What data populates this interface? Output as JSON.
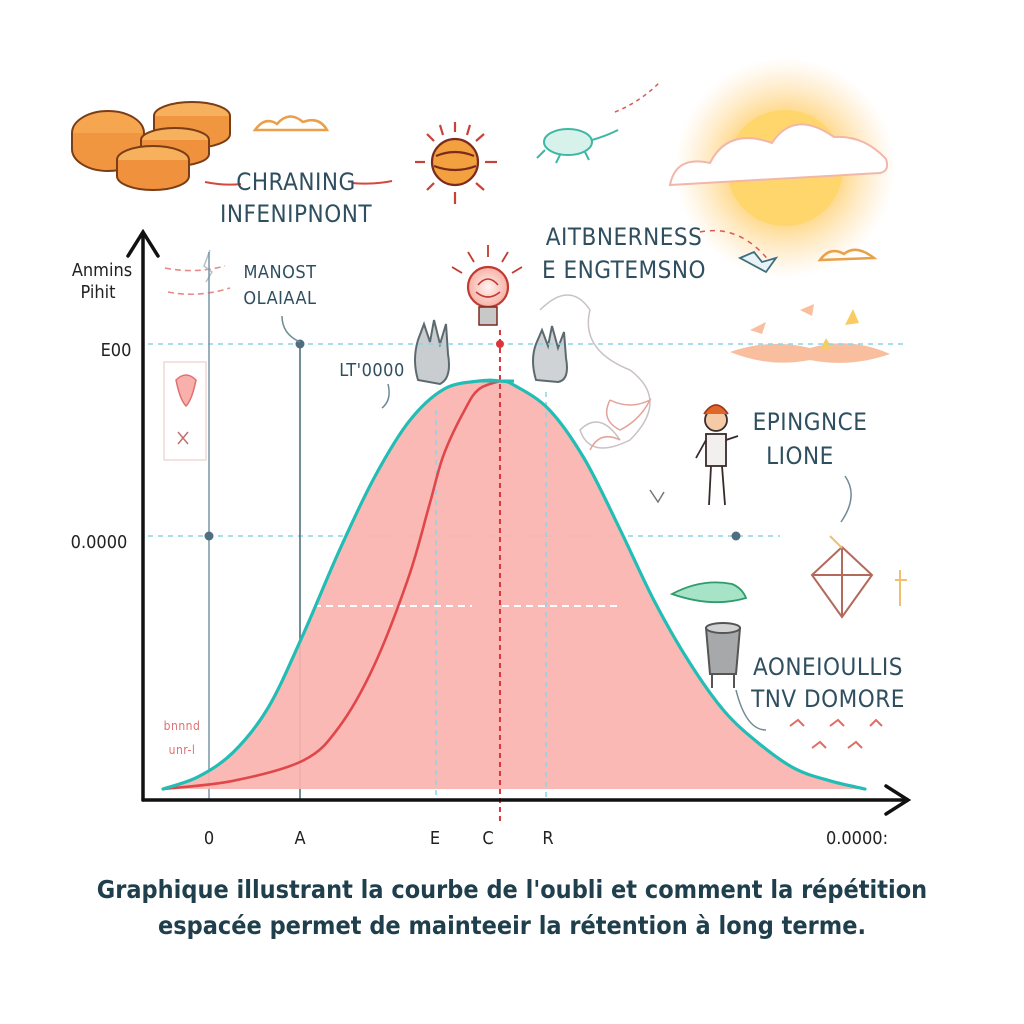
{
  "caption": {
    "line1": "Graphique illustrant la courbe de l'oubli et comment la répétition",
    "line2": "espacée permet de mainteeir la rétention à long terme."
  },
  "labels": {
    "top_center": [
      "CHRANING",
      "INFENIPNONT"
    ],
    "top_right": [
      "AITBNERNESS",
      "E ENGTEMSNO"
    ],
    "right_middle": [
      "EPINGNCE",
      "LIONE"
    ],
    "right_lower": [
      "AONEIOULLIS",
      "TNV DOMORE"
    ],
    "left_upper": [
      "MANOST",
      "OLAIAAL"
    ],
    "peak_note": "LT'0000",
    "bottom_left_note": [
      "bnnnd",
      "unr-l"
    ]
  },
  "chart_data": {
    "type": "area",
    "title": "",
    "ylabel": [
      "Anmins",
      "Pihit"
    ],
    "yticks": [
      "E00",
      "0.0000"
    ],
    "xticks": [
      "0",
      "A",
      "E",
      "C",
      "R",
      "0.0000:"
    ],
    "series": [
      {
        "role": "retention-bell",
        "color": "#22bdb5",
        "x": [
          0,
          5,
          10,
          15,
          20,
          25,
          30,
          35,
          40,
          45,
          48,
          50,
          55,
          60,
          65,
          70,
          75,
          80,
          85,
          90,
          95,
          100
        ],
        "y": [
          0.0,
          0.03,
          0.09,
          0.2,
          0.38,
          0.58,
          0.76,
          0.9,
          0.98,
          1.0,
          1.0,
          0.99,
          0.93,
          0.81,
          0.64,
          0.46,
          0.31,
          0.19,
          0.11,
          0.05,
          0.02,
          0.0
        ]
      },
      {
        "role": "learning-curve",
        "color": "#e0474a",
        "x": [
          0,
          10,
          20,
          25,
          30,
          35,
          38,
          40,
          43,
          45,
          48
        ],
        "y": [
          0.0,
          0.02,
          0.07,
          0.15,
          0.3,
          0.52,
          0.7,
          0.82,
          0.93,
          0.98,
          1.0
        ]
      }
    ],
    "guides": {
      "peak_x": 48
    },
    "colors": {
      "area_fill": "#fbb3b0",
      "axis": "#111111",
      "dashed_blue": "#8fd4e6",
      "dashed_red": "#d9363c"
    }
  }
}
